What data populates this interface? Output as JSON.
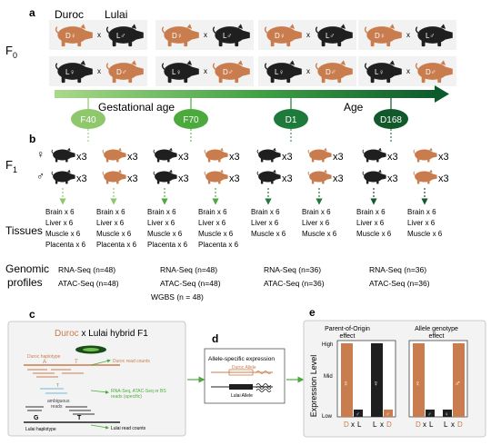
{
  "panels": {
    "a": "a",
    "b": "b",
    "c": "c",
    "d": "d",
    "e": "e"
  },
  "breeds": {
    "duroc": "Duroc",
    "lulai": "Lulai",
    "cross": "x"
  },
  "generations": {
    "f0": "F",
    "f0_sub": "0",
    "f1": "F",
    "f1_sub": "1"
  },
  "pig_labels": {
    "df": "D♀",
    "lm": "L♂",
    "lf": "L♀",
    "dm": "D♂"
  },
  "timeline": {
    "gestational_age": "Gestational age",
    "age": "Age"
  },
  "stages": [
    "F40",
    "F70",
    "D1",
    "D168"
  ],
  "sex_symbols": {
    "female": "♀",
    "male": "♂"
  },
  "count_label": "x3",
  "tissues_title": "Tissues",
  "tissue_lists": [
    [
      "Brain x 6",
      "Liver x 6",
      "Muscle x 6",
      "Placenta x 6"
    ],
    [
      "Brain x 6",
      "Liver x 6",
      "Muscle x 6",
      "Placenta x 6"
    ],
    [
      "Brain x 6",
      "Liver x 6",
      "Muscle x 6",
      "Placenta x 6"
    ],
    [
      "Brain x 6",
      "Liver x 6",
      "Muscle x 6",
      "Placenta x 6"
    ],
    [
      "Brain x 6",
      "Liver x 6",
      "Muscle x 6"
    ],
    [
      "Brain x 6",
      "Liver x 6",
      "Muscle x 6"
    ],
    [
      "Brain x 6",
      "Liver x 6",
      "Muscle x 6"
    ],
    [
      "Brain x 6",
      "Liver x 6",
      "Muscle x 6"
    ]
  ],
  "genomic_title": [
    "Genomic",
    "profiles"
  ],
  "genomic_lists": [
    [
      "RNA-Seq (n=48)",
      "ATAC-Seq (n=48)"
    ],
    [
      "RNA-Seq (n=48)",
      "ATAC-Seq (n=48)",
      "WGBS (n = 48)"
    ],
    [
      "RNA-Seq (n=36)",
      "ATAC-Seq (n=36)"
    ],
    [
      "RNA-Seq (n=36)",
      "ATAC-Seq (n=36)"
    ]
  ],
  "panel_c": {
    "title_duroc": "Duroc",
    "title_rest": " x  Lulai hybrid F1",
    "duroc_haplotype": "Duroc haplotype",
    "lulai_haplotype": "Lulai haplotype",
    "allele_a": "A",
    "allele_t": "T",
    "allele_g": "G",
    "duroc_counts": "Duroc read counts",
    "lulai_counts": "Lulai read counts",
    "ambiguous": [
      "ambiguous",
      "reads"
    ],
    "specific": [
      "RNA-Seq, ATAC-Seq or BS",
      "reads (specific)"
    ]
  },
  "panel_d": {
    "title": "Allele-specific expression",
    "duroc_allele": "Duroc Allele",
    "lulai_allele": "Lulai Allele"
  },
  "panel_e": {
    "y_label": "Expression Level",
    "levels": [
      "High",
      "Mid",
      "Low"
    ],
    "plot1_title": [
      "Parent-of-Origin",
      "effect"
    ],
    "plot2_title": [
      "Allele genotype",
      "effect"
    ],
    "cross_d": "D",
    "cross_l": "L",
    "cross_x": "x"
  },
  "colors": {
    "duroc": "#c97d4e",
    "lulai": "#1f1f1f",
    "green_light": "#8fc76d",
    "green_mid": "#4caa3c",
    "green_dark": "#1d7a3a",
    "green_darkest": "#11582b",
    "panel_bg": "#f3f3f3"
  },
  "icons": [
    "pig-icon",
    "arrow-icon",
    "dna-icon"
  ]
}
